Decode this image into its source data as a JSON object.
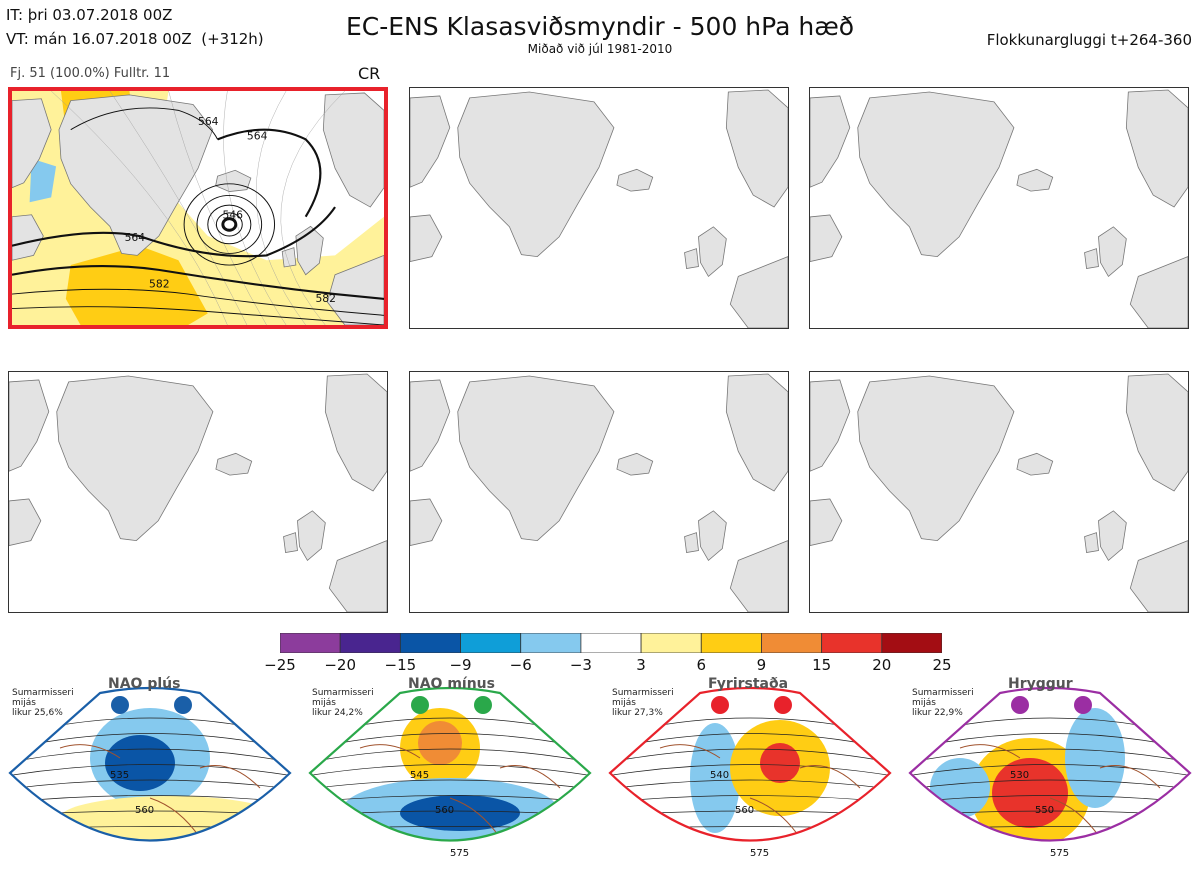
{
  "header": {
    "initial_time": "IT: þri 03.07.2018 00Z",
    "valid_time": "VT: mán 16.07.2018 00Z  (+312h)",
    "title": "EC-ENS Klasasviðsmyndir - 500 hPa hæð",
    "subtitle": "Miðað við júl 1981-2010",
    "window": "Flokkunargluggi t+264-360",
    "members": "Fj. 51 (100.0%)   Fulltr. 11",
    "selected_code": "CR"
  },
  "map_panels": [
    {
      "id": "panel-1",
      "selected": true,
      "contour_labels": [
        "564",
        "564",
        "546",
        "564",
        "582",
        "582"
      ]
    },
    {
      "id": "panel-2",
      "selected": false
    },
    {
      "id": "panel-3",
      "selected": false
    },
    {
      "id": "panel-4",
      "selected": false
    },
    {
      "id": "panel-5",
      "selected": false
    },
    {
      "id": "panel-6",
      "selected": false
    }
  ],
  "colorbar": {
    "ticks": [
      "−25",
      "−20",
      "−15",
      "−9",
      "−6",
      "−3",
      "3",
      "6",
      "9",
      "15",
      "20",
      "25"
    ],
    "colors": [
      "#8c3c9c",
      "#49258f",
      "#0a55a6",
      "#0f9ed8",
      "#85c9ee",
      "#ffffff",
      "#fff29a",
      "#ffcd14",
      "#f08c35",
      "#e8332b",
      "#a30d13"
    ]
  },
  "regimes": [
    {
      "name": "NAO plús",
      "info": "Sumarmisseri\nmijás\nlikur 25,6%",
      "color": "#1a5fa8",
      "labels": [
        "535",
        "560"
      ]
    },
    {
      "name": "NAO mínus",
      "info": "Sumarmisseri\nmijás\nlikur 24,2%",
      "color": "#2aa84a",
      "labels": [
        "545",
        "560",
        "575"
      ]
    },
    {
      "name": "Fyrirstaða",
      "info": "Sumarmisseri\nmijás\nlikur 27,3%",
      "color": "#e8222b",
      "labels": [
        "540",
        "560",
        "575"
      ]
    },
    {
      "name": "Hryggur",
      "info": "Sumarmisseri\nmijás\nlikur 22,9%",
      "color": "#9b2ea3",
      "labels": [
        "530",
        "550",
        "575"
      ]
    }
  ]
}
